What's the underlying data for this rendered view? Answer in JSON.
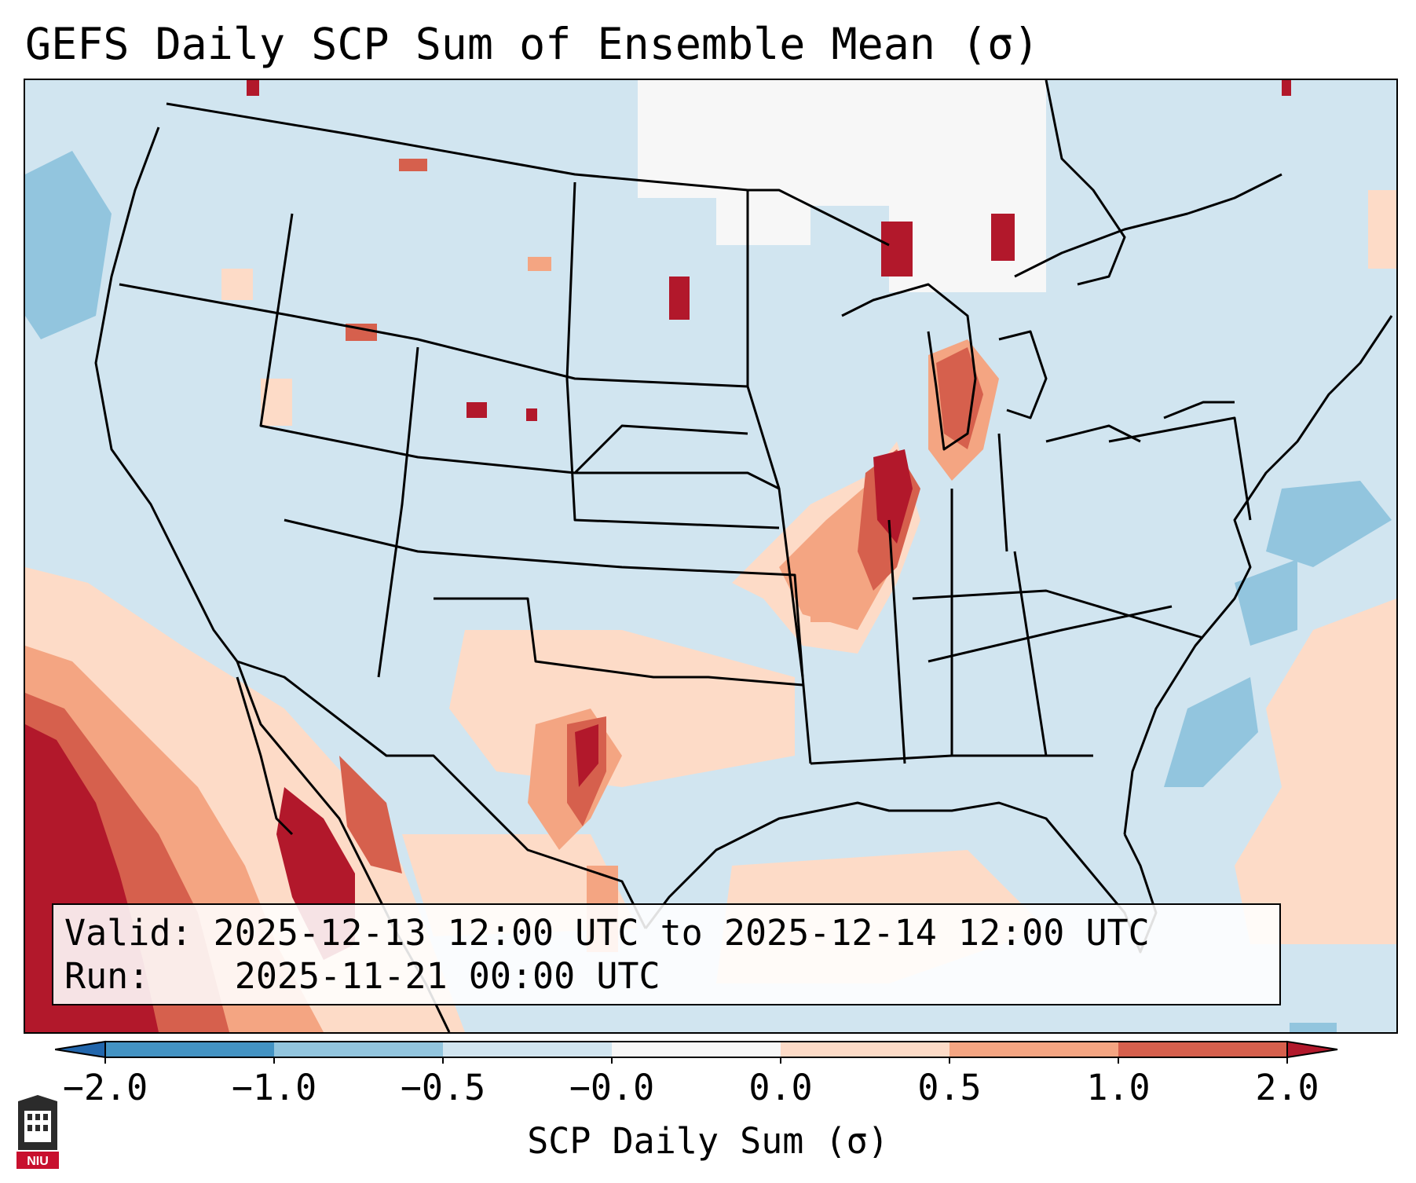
{
  "title": "GEFS Daily SCP Sum of Ensemble Mean (σ)",
  "info": {
    "valid_label": "Valid:",
    "valid_value": "2025-12-13 12:00 UTC to 2025-12-14 12:00 UTC",
    "run_label": "Run:",
    "run_value": "2025-11-21 00:00 UTC"
  },
  "colorbar": {
    "label": "SCP Daily Sum (σ)",
    "ticks": [
      "−2.0",
      "−1.0",
      "−0.5",
      "−0.0",
      "0.0",
      "0.5",
      "1.0",
      "2.0"
    ],
    "colors": [
      "#4393c3",
      "#92c5de",
      "#d1e5f0",
      "#f7f7f7",
      "#fddbc7",
      "#f4a582",
      "#d6604d",
      "#b2182b"
    ],
    "extend": "both"
  },
  "logo_text": "NIU",
  "map": {
    "background_level": "-0.5 to -0.0",
    "highlights": [
      "Mississippi Valley / Illinois corridor: 1.0 to 2.0+",
      "Lake Michigan shore: 1.0 to 2.0",
      "West Texas / Oklahoma panhandle: 1.0 to 2.0",
      "Northwest Mexico coast: 1.0 to 2.0+",
      "Eastern Pacific southwest: 1.0 to 2.0+",
      "Western Atlantic: -1.0 to -0.5"
    ]
  }
}
